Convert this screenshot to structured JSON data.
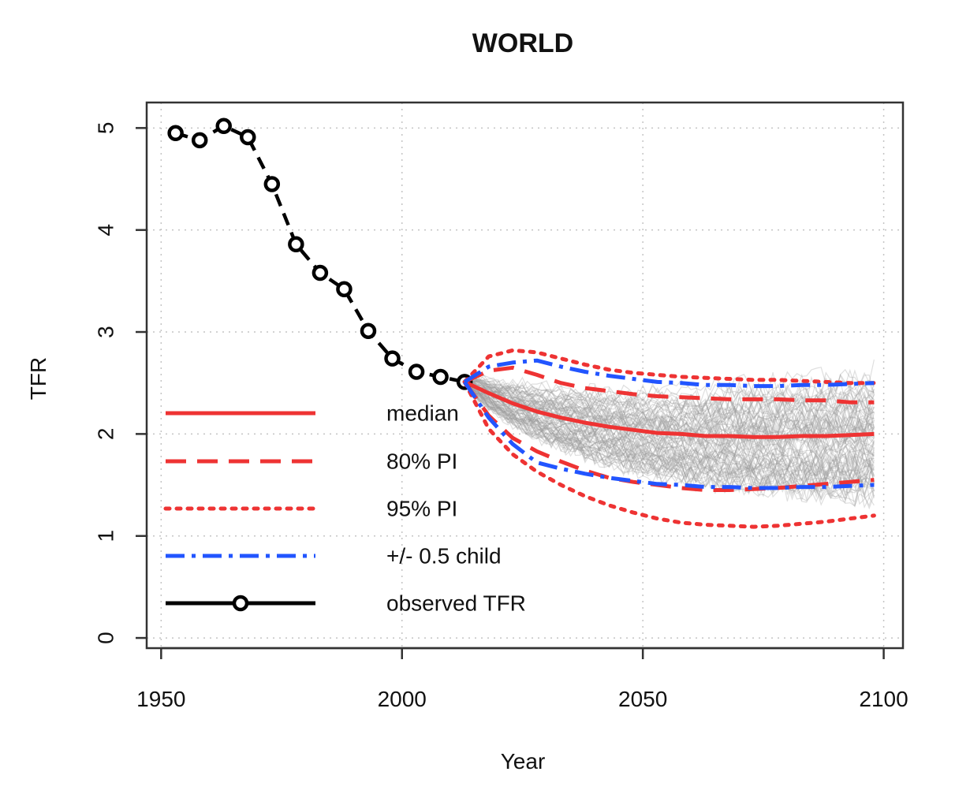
{
  "chart_data": {
    "type": "line",
    "title": "WORLD",
    "xlabel": "Year",
    "ylabel": "TFR",
    "xlim": [
      1947,
      2104
    ],
    "ylim": [
      -0.1,
      5.25
    ],
    "x_ticks": [
      1950,
      2000,
      2050,
      2100
    ],
    "y_ticks": [
      0,
      1,
      2,
      3,
      4,
      5
    ],
    "grid": true,
    "legend_placement": "left",
    "colors": {
      "median": "#ee3333",
      "pi": "#ee3333",
      "child": "#2255ff",
      "observed": "#000000",
      "trajectories": "#9a9a9a"
    },
    "series": [
      {
        "name": "observed TFR",
        "style": "dash-with-circle-markers",
        "x": [
          1953,
          1958,
          1963,
          1968,
          1973,
          1978,
          1983,
          1988,
          1993,
          1998,
          2003,
          2008,
          2013
        ],
        "y": [
          4.95,
          4.88,
          5.02,
          4.91,
          4.45,
          3.86,
          3.58,
          3.42,
          3.01,
          2.74,
          2.61,
          2.56,
          2.51
        ]
      },
      {
        "name": "median",
        "style": "solid",
        "x": [
          2013,
          2018,
          2023,
          2028,
          2033,
          2038,
          2043,
          2048,
          2053,
          2058,
          2063,
          2068,
          2073,
          2078,
          2083,
          2088,
          2093,
          2098
        ],
        "y": [
          2.51,
          2.4,
          2.3,
          2.22,
          2.16,
          2.11,
          2.07,
          2.04,
          2.01,
          2.0,
          1.98,
          1.98,
          1.97,
          1.97,
          1.98,
          1.98,
          1.99,
          2.0
        ]
      },
      {
        "name": "80% PI",
        "style": "dashed",
        "x": [
          2013,
          2018,
          2023,
          2028,
          2033,
          2038,
          2043,
          2048,
          2053,
          2058,
          2063,
          2068,
          2073,
          2078,
          2083,
          2088,
          2093,
          2098
        ],
        "y": [
          2.51,
          2.62,
          2.65,
          2.58,
          2.5,
          2.45,
          2.42,
          2.39,
          2.37,
          2.36,
          2.35,
          2.34,
          2.34,
          2.34,
          2.33,
          2.33,
          2.31,
          2.31
        ]
      },
      {
        "name": "80% PI lower",
        "style": "dashed",
        "x": [
          2013,
          2018,
          2023,
          2028,
          2033,
          2038,
          2043,
          2048,
          2053,
          2058,
          2063,
          2068,
          2073,
          2078,
          2083,
          2088,
          2093,
          2098
        ],
        "y": [
          2.51,
          2.18,
          1.96,
          1.83,
          1.73,
          1.64,
          1.57,
          1.53,
          1.5,
          1.47,
          1.45,
          1.45,
          1.46,
          1.47,
          1.49,
          1.51,
          1.53,
          1.55
        ]
      },
      {
        "name": "95% PI",
        "style": "dotted",
        "x": [
          2013,
          2018,
          2023,
          2028,
          2033,
          2038,
          2043,
          2048,
          2053,
          2058,
          2063,
          2068,
          2073,
          2078,
          2083,
          2088,
          2093,
          2098
        ],
        "y": [
          2.51,
          2.76,
          2.82,
          2.8,
          2.74,
          2.68,
          2.63,
          2.6,
          2.58,
          2.56,
          2.55,
          2.54,
          2.53,
          2.53,
          2.52,
          2.51,
          2.5,
          2.5
        ]
      },
      {
        "name": "95% PI lower",
        "style": "dotted",
        "x": [
          2013,
          2018,
          2023,
          2028,
          2033,
          2038,
          2043,
          2048,
          2053,
          2058,
          2063,
          2068,
          2073,
          2078,
          2083,
          2088,
          2093,
          2098
        ],
        "y": [
          2.51,
          2.05,
          1.8,
          1.63,
          1.5,
          1.39,
          1.3,
          1.23,
          1.17,
          1.13,
          1.11,
          1.1,
          1.09,
          1.1,
          1.12,
          1.14,
          1.17,
          1.2
        ]
      },
      {
        "name": "+/- 0.5 child",
        "style": "dash-dot",
        "x": [
          2013,
          2018,
          2023,
          2028,
          2033,
          2038,
          2043,
          2048,
          2053,
          2058,
          2063,
          2068,
          2073,
          2078,
          2083,
          2088,
          2093,
          2098
        ],
        "y": [
          2.51,
          2.66,
          2.7,
          2.72,
          2.66,
          2.61,
          2.57,
          2.54,
          2.51,
          2.5,
          2.48,
          2.48,
          2.47,
          2.47,
          2.48,
          2.48,
          2.49,
          2.5
        ]
      },
      {
        "name": "+/- 0.5 child lower",
        "style": "dash-dot",
        "x": [
          2013,
          2018,
          2023,
          2028,
          2033,
          2038,
          2043,
          2048,
          2053,
          2058,
          2063,
          2068,
          2073,
          2078,
          2083,
          2088,
          2093,
          2098
        ],
        "y": [
          2.51,
          2.16,
          1.9,
          1.72,
          1.66,
          1.61,
          1.57,
          1.54,
          1.51,
          1.5,
          1.48,
          1.48,
          1.47,
          1.47,
          1.48,
          1.48,
          1.49,
          1.5
        ]
      }
    ],
    "legend": [
      {
        "label": "median",
        "style": "solid",
        "color": "#ee3333"
      },
      {
        "label": "80% PI",
        "style": "dashed",
        "color": "#ee3333"
      },
      {
        "label": "95% PI",
        "style": "dotted",
        "color": "#ee3333"
      },
      {
        "label": "+/- 0.5 child",
        "style": "dash-dot",
        "color": "#2255ff"
      },
      {
        "label": "observed TFR",
        "style": "line-with-circle",
        "color": "#000000"
      }
    ]
  }
}
